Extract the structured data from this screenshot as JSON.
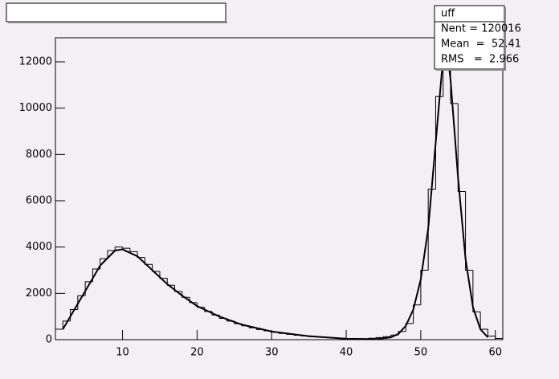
{
  "chart_data": {
    "type": "histogram",
    "bins": [
      1,
      2,
      3,
      4,
      5,
      6,
      7,
      8,
      9,
      10,
      11,
      12,
      13,
      14,
      15,
      16,
      17,
      18,
      19,
      20,
      21,
      22,
      23,
      24,
      25,
      26,
      27,
      28,
      29,
      30,
      31,
      32,
      33,
      34,
      35,
      36,
      37,
      38,
      39,
      40,
      41,
      42,
      43,
      44,
      45,
      46,
      47,
      48,
      49,
      50,
      51,
      52,
      53,
      54,
      55,
      56,
      57,
      58,
      59,
      60,
      61
    ],
    "values": [
      450,
      800,
      1300,
      1900,
      2500,
      3050,
      3500,
      3850,
      4000,
      3950,
      3800,
      3550,
      3250,
      2950,
      2650,
      2350,
      2080,
      1830,
      1600,
      1400,
      1220,
      1060,
      920,
      800,
      690,
      600,
      510,
      440,
      380,
      320,
      270,
      230,
      190,
      160,
      130,
      110,
      90,
      70,
      60,
      50,
      40,
      40,
      60,
      90,
      130,
      200,
      350,
      700,
      1500,
      3000,
      6500,
      10500,
      12400,
      10200,
      6400,
      3000,
      1200,
      450,
      150,
      50
    ],
    "color": "#000000",
    "fit": {
      "x": [
        2,
        3,
        5,
        7,
        9,
        10,
        12,
        14,
        16,
        18,
        20,
        23,
        26,
        30,
        35,
        40,
        44,
        46,
        47,
        48,
        49,
        50,
        51,
        52,
        53,
        53.5,
        54,
        55,
        56,
        57,
        58,
        59
      ],
      "values": [
        450,
        1000,
        2100,
        3200,
        3850,
        3900,
        3600,
        3000,
        2400,
        1900,
        1450,
        1000,
        650,
        350,
        150,
        40,
        20,
        100,
        250,
        600,
        1300,
        2600,
        4800,
        8500,
        12200,
        12600,
        11200,
        7000,
        3500,
        1400,
        450,
        100
      ],
      "color": "#000000"
    },
    "xlim": [
      1,
      61
    ],
    "ylim": [
      0,
      13040
    ],
    "xticks": [
      10,
      20,
      30,
      40,
      50,
      60
    ],
    "yticks": [
      0,
      2000,
      4000,
      6000,
      8000,
      10000,
      12000
    ],
    "stats": {
      "name": "uff",
      "entries": "Nent = 120016",
      "mean": "Mean  =  52.41",
      "rms": "RMS   =  2.966"
    }
  }
}
